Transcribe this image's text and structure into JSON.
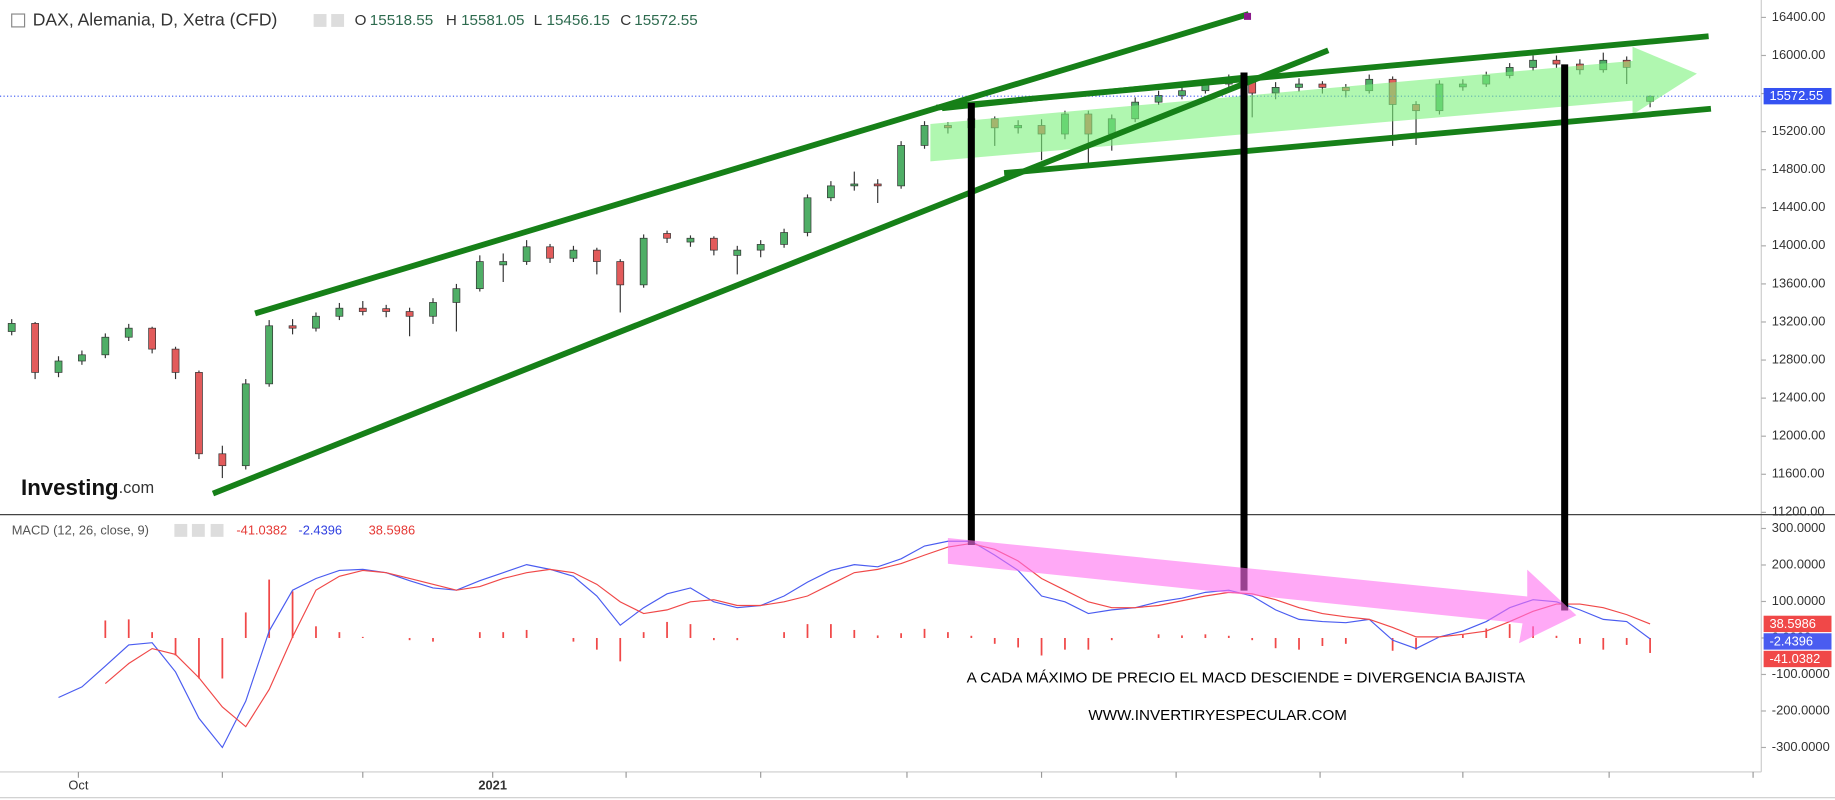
{
  "chart_data": [
    {
      "type": "candlestick",
      "title": "DAX, Alemania, D, Xetra (CFD)",
      "ohlc_labels": [
        "O",
        "H",
        "L",
        "C"
      ],
      "x": [
        0,
        1,
        2,
        3,
        4,
        5,
        6,
        7,
        8,
        9,
        10,
        11,
        12,
        13,
        14,
        15,
        16,
        17,
        18,
        19,
        20,
        21,
        22,
        23,
        24,
        25,
        26,
        27,
        28,
        29,
        30,
        31,
        32,
        33,
        34,
        35,
        36,
        37,
        38,
        39,
        40,
        41,
        42,
        43,
        44,
        45,
        46,
        47,
        48,
        49,
        50,
        51,
        52,
        53,
        54,
        55,
        56,
        57,
        58,
        59,
        60,
        61,
        62,
        63,
        64,
        65,
        66,
        67,
        68,
        69,
        70
      ],
      "open": [
        13100,
        13185,
        12670,
        12790,
        12855,
        13040,
        13135,
        12915,
        12670,
        11815,
        11690,
        12550,
        13160,
        13135,
        13260,
        13345,
        13340,
        13310,
        13260,
        13405,
        13550,
        13800,
        13835,
        13990,
        13870,
        13955,
        13835,
        13590,
        14130,
        14040,
        14080,
        13900,
        13955,
        14015,
        14140,
        14505,
        14630,
        14650,
        14630,
        15055,
        15265,
        15240,
        15335,
        15240,
        15265,
        15175,
        15385,
        15175,
        15335,
        15510,
        15580,
        15630,
        15700,
        15725,
        15605,
        15665,
        15700,
        15665,
        15630,
        15750,
        15485,
        15420,
        15670,
        15700,
        15790,
        15875,
        15950,
        15910,
        15850,
        15950,
        15518.55
      ],
      "high": [
        13230,
        13200,
        12840,
        12900,
        13080,
        13180,
        13150,
        12940,
        12690,
        11900,
        12600,
        13220,
        13230,
        13300,
        13400,
        13420,
        13380,
        13350,
        13450,
        13600,
        13900,
        13920,
        14060,
        14020,
        14000,
        13980,
        13860,
        14120,
        14160,
        14110,
        14100,
        14000,
        14060,
        14180,
        14540,
        14680,
        14780,
        14700,
        15100,
        15310,
        15300,
        15400,
        15360,
        15320,
        15330,
        15420,
        15420,
        15380,
        15560,
        15630,
        15680,
        15740,
        15800,
        15740,
        15720,
        15760,
        15730,
        15700,
        15800,
        15780,
        15520,
        15740,
        15750,
        15830,
        15920,
        16000,
        16000,
        15960,
        16030,
        15990,
        15581.05
      ],
      "low": [
        13060,
        12600,
        12620,
        12750,
        12820,
        13000,
        12870,
        12600,
        11760,
        11560,
        11650,
        12520,
        13070,
        13100,
        13220,
        13270,
        13250,
        13050,
        13180,
        13100,
        13520,
        13620,
        13800,
        13820,
        13830,
        13700,
        13300,
        13560,
        14030,
        13990,
        13900,
        13700,
        13880,
        13980,
        14100,
        14470,
        14580,
        14450,
        14600,
        15020,
        15180,
        15200,
        15050,
        15180,
        14900,
        15120,
        14850,
        15000,
        15300,
        15480,
        15540,
        15600,
        15650,
        15350,
        15540,
        15620,
        15600,
        15560,
        15600,
        15050,
        15060,
        15380,
        15630,
        15670,
        15760,
        15840,
        15870,
        15800,
        15820,
        15700,
        15456.15
      ],
      "close": [
        13185,
        12670,
        12790,
        12855,
        13040,
        13135,
        12915,
        12670,
        11815,
        11690,
        12550,
        13160,
        13135,
        13260,
        13345,
        13310,
        13310,
        13260,
        13405,
        13550,
        13835,
        13835,
        13990,
        13870,
        13955,
        13835,
        13590,
        14080,
        14080,
        14080,
        13955,
        13955,
        14015,
        14140,
        14505,
        14630,
        14650,
        14630,
        15055,
        15265,
        15240,
        15335,
        15240,
        15265,
        15175,
        15385,
        15175,
        15335,
        15510,
        15580,
        15630,
        15700,
        15725,
        15605,
        15665,
        15700,
        15665,
        15630,
        15750,
        15485,
        15420,
        15700,
        15700,
        15790,
        15875,
        15950,
        15910,
        15850,
        15950,
        15875,
        15572.55
      ],
      "up_color": "#4fae66",
      "down_color": "#e25b5b",
      "last_price_color": "#3552f2",
      "xlim": [
        -0.5,
        74.75
      ],
      "ylim": [
        11176,
        16583
      ],
      "yticks": [
        {
          "value": 11200,
          "label": "11200.00"
        },
        {
          "value": 11600,
          "label": "11600.00"
        },
        {
          "value": 12000,
          "label": "12000.00"
        },
        {
          "value": 12400,
          "label": "12400.00"
        },
        {
          "value": 12800,
          "label": "12800.00"
        },
        {
          "value": 13200,
          "label": "13200.00"
        },
        {
          "value": 13600,
          "label": "13600.00"
        },
        {
          "value": 14000,
          "label": "14000.00"
        },
        {
          "value": 14400,
          "label": "14400.00"
        },
        {
          "value": 14800,
          "label": "14800.00"
        },
        {
          "value": 15200,
          "label": "15200.00"
        },
        {
          "value": 15600,
          "label": "15600.00"
        },
        {
          "value": 16000,
          "label": "16000.00"
        },
        {
          "value": 16400,
          "label": "16400.00"
        }
      ]
    },
    {
      "type": "macd",
      "title": "MACD (12, 26, close, 9)",
      "x": [
        0,
        1,
        2,
        3,
        4,
        5,
        6,
        7,
        8,
        9,
        10,
        11,
        12,
        13,
        14,
        15,
        16,
        17,
        18,
        19,
        20,
        21,
        22,
        23,
        24,
        25,
        26,
        27,
        28,
        29,
        30,
        31,
        32,
        33,
        34,
        35,
        36,
        37,
        38,
        39,
        40,
        41,
        42,
        43,
        44,
        45,
        46,
        47,
        48,
        49,
        50,
        51,
        52,
        53,
        54,
        55,
        56,
        57,
        58,
        59,
        60,
        61,
        62,
        63,
        64,
        65,
        66,
        67,
        68,
        69,
        70
      ],
      "series": [
        {
          "color": "#4a5cf0",
          "values": [
            null,
            null,
            -163,
            -134,
            -77,
            -19,
            -13,
            -93,
            -220,
            -300,
            -173,
            19,
            131,
            163,
            185,
            188,
            179,
            157,
            137,
            131,
            157,
            179,
            201,
            188,
            169,
            115,
            35,
            83,
            121,
            137,
            99,
            83,
            89,
            115,
            153,
            185,
            201,
            195,
            217,
            252,
            265,
            265,
            227,
            185,
            115,
            99,
            67,
            77,
            83,
            99,
            109,
            125,
            131,
            115,
            77,
            51,
            45,
            42,
            51,
            -6,
            -29,
            3,
            19,
            45,
            83,
            105,
            99,
            77,
            51,
            45,
            -2.4396
          ]
        },
        {
          "color": "#f04848",
          "values": [
            null,
            null,
            null,
            null,
            -125,
            -70,
            -29,
            -45,
            -109,
            -189,
            -243,
            -141,
            3,
            131,
            169,
            185,
            179,
            163,
            147,
            131,
            141,
            163,
            179,
            188,
            179,
            147,
            99,
            67,
            77,
            99,
            105,
            89,
            89,
            99,
            115,
            147,
            179,
            188,
            204,
            227,
            249,
            259,
            243,
            211,
            163,
            131,
            99,
            83,
            83,
            89,
            102,
            115,
            125,
            121,
            105,
            83,
            67,
            58,
            51,
            29,
            3,
            3,
            10,
            19,
            45,
            73,
            93,
            93,
            83,
            64,
            38.5986
          ]
        }
      ],
      "histogram": {
        "color": "#f04848",
        "values": [
          null,
          null,
          null,
          null,
          48,
          51,
          16,
          -48,
          -111,
          -111,
          70,
          160,
          128,
          32,
          16,
          3,
          0,
          -6,
          -10,
          0,
          16,
          16,
          22,
          0,
          -10,
          -32,
          -64,
          16,
          44,
          38,
          -6,
          -6,
          0,
          16,
          38,
          38,
          22,
          7,
          13,
          25,
          16,
          6,
          -16,
          -26,
          -48,
          -32,
          -32,
          -6,
          0,
          10,
          7,
          10,
          6,
          -6,
          -28,
          -32,
          -22,
          -16,
          0,
          -35,
          -32,
          0,
          9,
          26,
          38,
          32,
          6,
          -16,
          -32,
          -19,
          -41.0382
        ]
      },
      "xlim": [
        -0.5,
        74.75
      ],
      "ylim": [
        -367,
        338
      ],
      "yticks": [
        {
          "value": -300,
          "label": "-300.0000"
        },
        {
          "value": -200,
          "label": "-200.0000"
        },
        {
          "value": -100,
          "label": "-100.0000"
        },
        {
          "value": 0,
          "label": "0.0000"
        },
        {
          "value": 100,
          "label": "100.0000"
        },
        {
          "value": 200,
          "label": "200.0000"
        },
        {
          "value": 300,
          "label": "300.0000"
        }
      ],
      "xticks": [
        {
          "value": 2.85,
          "label": "Oct"
        },
        {
          "value": 9,
          "label": null
        },
        {
          "value": 15,
          "label": null
        },
        {
          "value": 20.55,
          "label": "2021"
        },
        {
          "value": 26.25,
          "label": null
        },
        {
          "value": 32,
          "label": null
        },
        {
          "value": 38.25,
          "label": null
        },
        {
          "value": 44,
          "label": null
        },
        {
          "value": 49.75,
          "label": null
        },
        {
          "value": 55.9,
          "label": null
        },
        {
          "value": 62,
          "label": null
        },
        {
          "value": 68.25,
          "label": null
        },
        {
          "value": 74.4,
          "label": null
        }
      ]
    }
  ],
  "annotations": {
    "text": [
      "A CADA MÁXIMO DE PRECIO EL MACD DESCIENDE = DIVERGENCIA BAJISTA",
      "WWW.INVERTIRYESPECULAR.COM"
    ],
    "logo": {
      "name": "Investing",
      "suffix": ".com"
    }
  }
}
